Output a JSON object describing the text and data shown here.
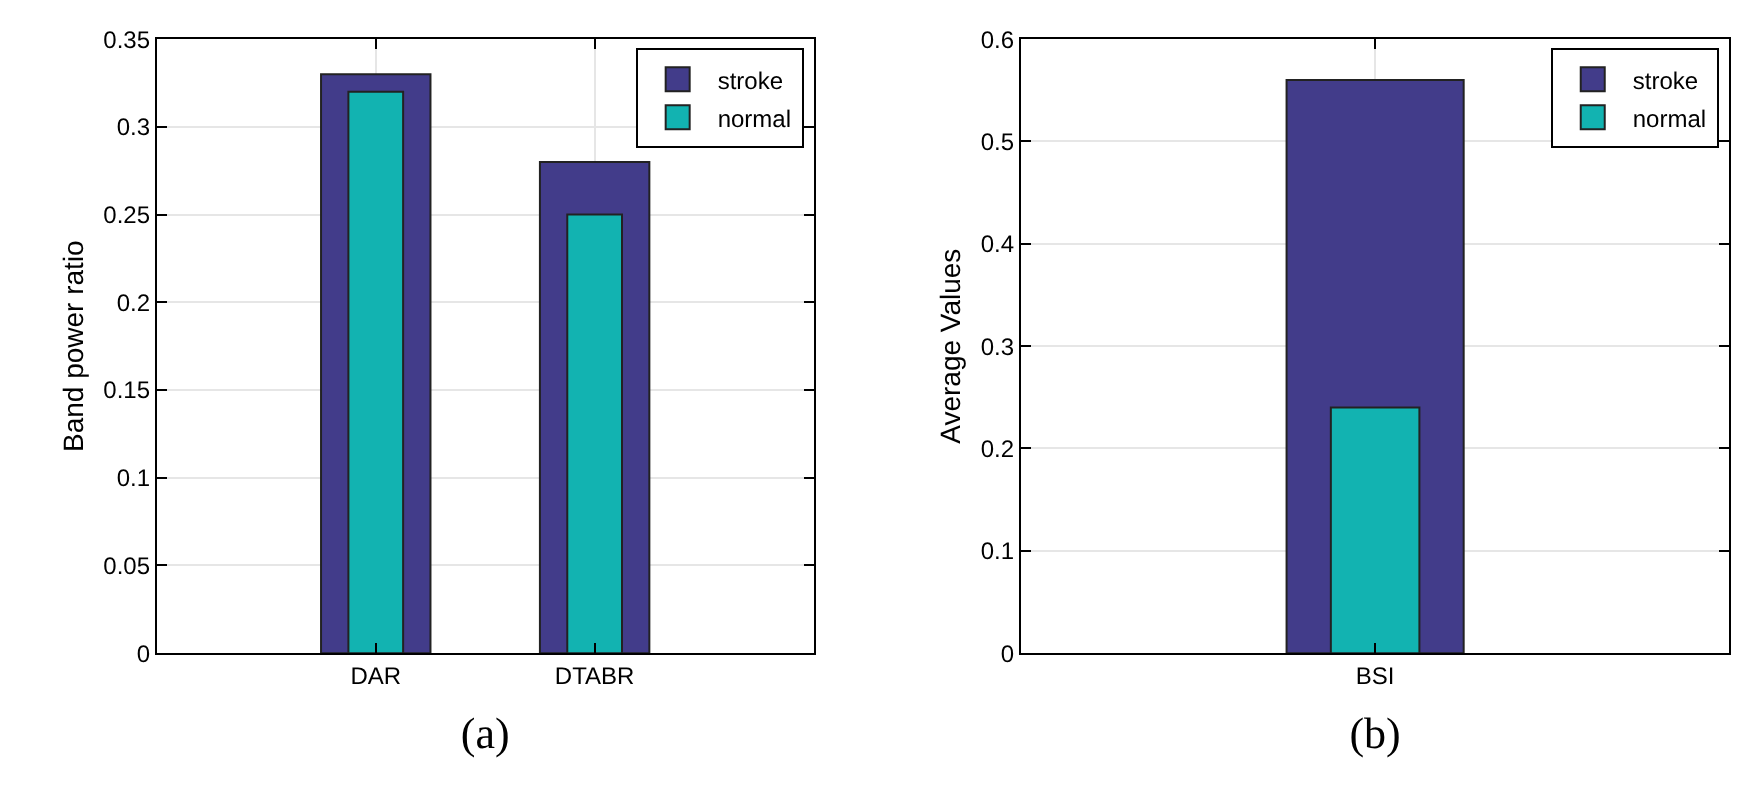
{
  "chart_data": [
    {
      "type": "bar",
      "categories": [
        "DAR",
        "DTABR"
      ],
      "ylabel": "Band power ratio",
      "xlabel": "(a)",
      "series": [
        {
          "name": "stroke",
          "color": "#423c8a",
          "values": [
            0.33,
            0.28
          ]
        },
        {
          "name": "normal",
          "color": "#12b3b1",
          "values": [
            0.32,
            0.25
          ]
        }
      ],
      "ylim": [
        0,
        0.35
      ],
      "yticks": [
        0,
        0.05,
        0.1,
        0.15,
        0.2,
        0.25,
        0.3,
        0.35
      ],
      "grid": true,
      "legend": "top right"
    },
    {
      "type": "bar",
      "categories": [
        "BSI"
      ],
      "ylabel": "Average Values",
      "xlabel": "(b)",
      "series": [
        {
          "name": "stroke",
          "color": "#423c8a",
          "values": [
            0.56
          ]
        },
        {
          "name": "normal",
          "color": "#12b3b1",
          "values": [
            0.24
          ]
        }
      ],
      "ylim": [
        0,
        0.6
      ],
      "yticks": [
        0,
        0.1,
        0.2,
        0.3,
        0.4,
        0.5,
        0.6
      ],
      "grid": true,
      "legend": "top right"
    }
  ]
}
